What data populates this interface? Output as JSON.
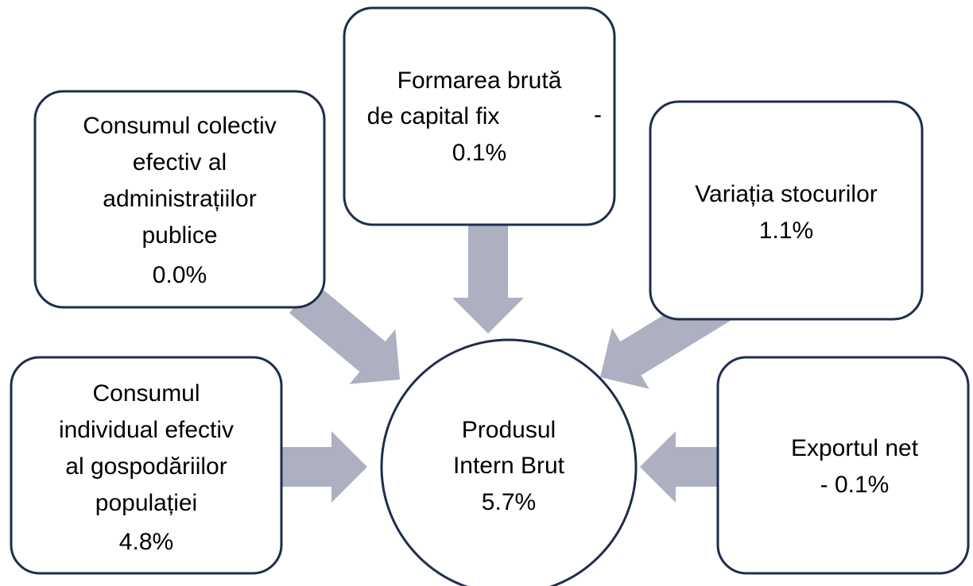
{
  "center": {
    "lines": [
      "Produsul",
      "Intern Brut",
      "5.7%"
    ]
  },
  "nodes": [
    {
      "lines": [
        "Consumul",
        "individual efectiv",
        "al gospodăriilor",
        "populației",
        "4.8%"
      ]
    },
    {
      "lines": [
        "Consumul colectiv",
        "efectiv al",
        "administrațiilor",
        "publice",
        "0.0%"
      ]
    },
    {
      "lines": [
        "Formarea brută",
        "de capital fix",
        "-",
        "0.1%"
      ]
    },
    {
      "lines": [
        "Variația stocurilor",
        "1.1%"
      ]
    },
    {
      "lines": [
        "Exportul net",
        "- 0.1%"
      ]
    }
  ]
}
